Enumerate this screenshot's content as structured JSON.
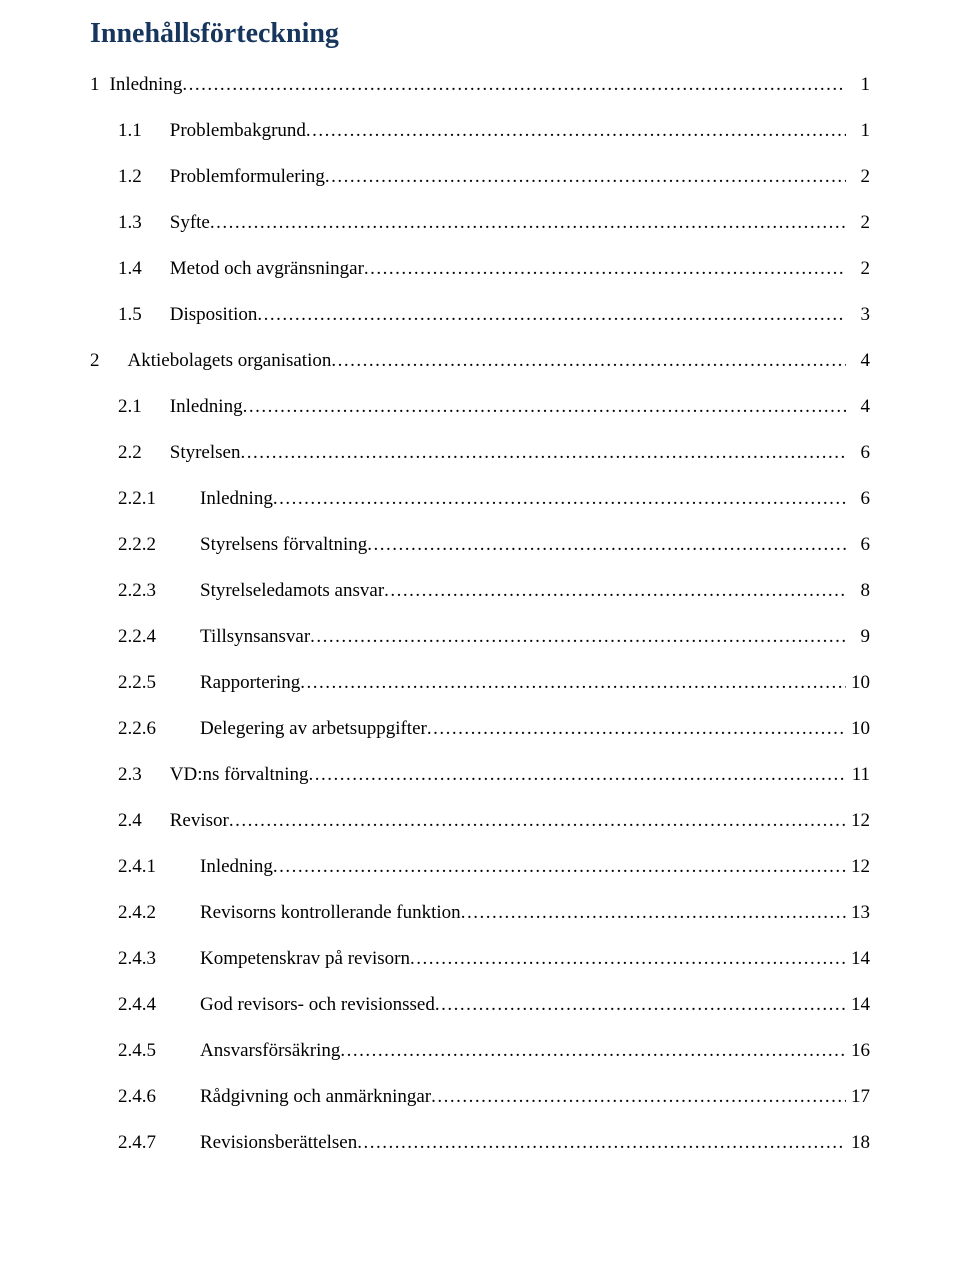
{
  "title": "Innehållsförteckning",
  "title_color": "#17365d",
  "text_color": "#000000",
  "background_color": "#ffffff",
  "font_family": "Times New Roman",
  "title_fontsize": 28,
  "body_fontsize": 19,
  "toc": [
    {
      "level": 0,
      "number": "1",
      "label": "Inledning",
      "page": "1",
      "gap_class": ""
    },
    {
      "level": 1,
      "number": "1.1",
      "label": "Problembakgrund",
      "page": "1",
      "gap_class": ""
    },
    {
      "level": 1,
      "number": "1.2",
      "label": "Problemformulering",
      "page": "2",
      "gap_class": ""
    },
    {
      "level": 1,
      "number": "1.3",
      "label": "Syfte",
      "page": "2",
      "gap_class": ""
    },
    {
      "level": 1,
      "number": "1.4",
      "label": "Metod och avgränsningar",
      "page": "2",
      "gap_class": ""
    },
    {
      "level": 1,
      "number": "1.5",
      "label": "Disposition",
      "page": "3",
      "gap_class": ""
    },
    {
      "level": 0,
      "number": "2",
      "label": "Aktiebolagets organisation",
      "page": "4",
      "gap_class": "wide-gap"
    },
    {
      "level": 1,
      "number": "2.1",
      "label": "Inledning",
      "page": "4",
      "gap_class": ""
    },
    {
      "level": 1,
      "number": "2.2",
      "label": "Styrelsen",
      "page": "6",
      "gap_class": ""
    },
    {
      "level": 2,
      "number": "2.2.1",
      "label": "Inledning",
      "page": "6",
      "gap_class": ""
    },
    {
      "level": 2,
      "number": "2.2.2",
      "label": "Styrelsens förvaltning",
      "page": "6",
      "gap_class": ""
    },
    {
      "level": 2,
      "number": "2.2.3",
      "label": "Styrelseledamots ansvar",
      "page": "8",
      "gap_class": ""
    },
    {
      "level": 2,
      "number": "2.2.4",
      "label": "Tillsynsansvar",
      "page": "9",
      "gap_class": ""
    },
    {
      "level": 2,
      "number": "2.2.5",
      "label": "Rapportering",
      "page": "10",
      "gap_class": ""
    },
    {
      "level": 2,
      "number": "2.2.6",
      "label": "Delegering av arbetsuppgifter",
      "page": "10",
      "gap_class": ""
    },
    {
      "level": 1,
      "number": "2.3",
      "label": "VD:ns förvaltning",
      "page": "11",
      "gap_class": ""
    },
    {
      "level": 1,
      "number": "2.4",
      "label": "Revisor",
      "page": "12",
      "gap_class": ""
    },
    {
      "level": 2,
      "number": "2.4.1",
      "label": "Inledning",
      "page": "12",
      "gap_class": ""
    },
    {
      "level": 2,
      "number": "2.4.2",
      "label": "Revisorns kontrollerande funktion",
      "page": "13",
      "gap_class": ""
    },
    {
      "level": 2,
      "number": "2.4.3",
      "label": "Kompetenskrav på revisorn",
      "page": "14",
      "gap_class": ""
    },
    {
      "level": 2,
      "number": "2.4.4",
      "label": "God revisors- och revisionssed",
      "page": "14",
      "gap_class": ""
    },
    {
      "level": 2,
      "number": "2.4.5",
      "label": "Ansvarsförsäkring",
      "page": "16",
      "gap_class": ""
    },
    {
      "level": 2,
      "number": "2.4.6",
      "label": "Rådgivning och anmärkningar",
      "page": "17",
      "gap_class": ""
    },
    {
      "level": 2,
      "number": "2.4.7",
      "label": "Revisionsberättelsen",
      "page": "18",
      "gap_class": ""
    }
  ]
}
